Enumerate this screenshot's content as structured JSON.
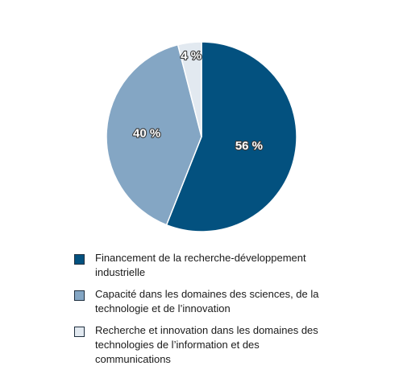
{
  "chart_data": {
    "type": "pie",
    "title": "",
    "slices": [
      {
        "label": "Financement de la recherche-développement industrielle",
        "value": 56,
        "value_label": "56 %",
        "color": "#03517f"
      },
      {
        "label": "Capacité dans les domaines des sciences, de la technologie et de l'innovation",
        "value": 40,
        "value_label": "40 %",
        "color": "#84a6c4"
      },
      {
        "label": "Recherche et innovation dans les domaines des technologies de l'information et des communications",
        "value": 4,
        "value_label": "4 %",
        "color": "#e2e9f0"
      }
    ],
    "legend_placement": "bottom"
  },
  "legend": {
    "items": [
      {
        "text": "Financement de la recherche-développement industrielle",
        "color": "#03517f"
      },
      {
        "text": "Capacité dans les domaines des sciences, de la technologie et de l’innovation",
        "color": "#84a6c4"
      },
      {
        "text": "Recherche et innovation dans les domaines des technologies de l’information et des communications",
        "color": "#e2e9f0"
      }
    ]
  }
}
